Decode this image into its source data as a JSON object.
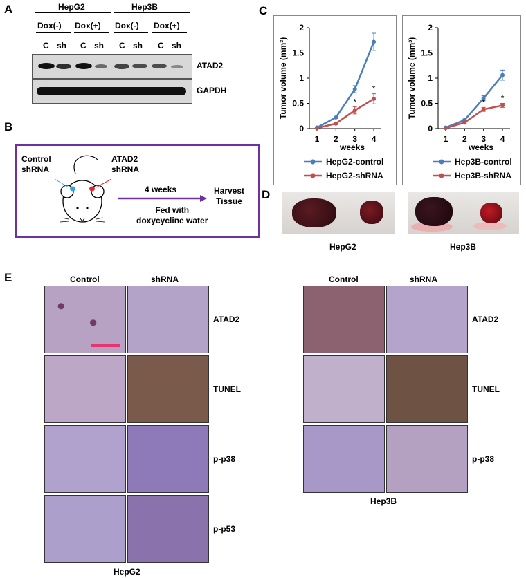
{
  "panel_A": {
    "letter": "A",
    "cell_lines": [
      "HepG2",
      "Hep3B"
    ],
    "dox_labels": [
      "Dox(-)",
      "Dox(+)",
      "Dox(-)",
      "Dox(+)"
    ],
    "lanes": [
      "C",
      "sh",
      "C",
      "sh",
      "C",
      "sh",
      "C",
      "sh"
    ],
    "proteins": [
      "ATAD2",
      "GAPDH"
    ]
  },
  "panel_B": {
    "letter": "B",
    "control_label": "Control\nshRNA",
    "atad2_label": "ATAD2\nshRNA",
    "duration": "4 weeks",
    "treatment": "Fed with\ndoxycycline water",
    "outcome": "Harvest\nTissue"
  },
  "panel_C": {
    "letter": "C"
  },
  "chart_data": [
    {
      "type": "line",
      "title": "",
      "xlabel": "weeks",
      "ylabel": "Tumor volume (mm³)",
      "x": [
        1,
        2,
        3,
        4
      ],
      "ylim": [
        0,
        2
      ],
      "yticks": [
        "0",
        "0.5",
        "1",
        "1.5",
        "2"
      ],
      "xticks": [
        "1",
        "2",
        "3",
        "4"
      ],
      "series": [
        {
          "name": "HepG2-control",
          "color": "#4a7ebb",
          "values": [
            0.02,
            0.22,
            0.78,
            1.72
          ],
          "errors": [
            0.01,
            0.02,
            0.07,
            0.17
          ]
        },
        {
          "name": "HepG2-shRNA",
          "color": "#c0504d",
          "values": [
            0.01,
            0.1,
            0.36,
            0.59
          ],
          "errors": [
            0.01,
            0.02,
            0.07,
            0.1
          ]
        }
      ],
      "significance": [
        "",
        "",
        "*",
        "*"
      ],
      "legend": "bottom"
    },
    {
      "type": "line",
      "title": "",
      "xlabel": "weeks",
      "ylabel": "Tumor volume (mm³)",
      "x": [
        1,
        2,
        3,
        4
      ],
      "ylim": [
        0,
        2
      ],
      "yticks": [
        "0",
        "0.5",
        "1",
        "1.5",
        "2"
      ],
      "xticks": [
        "1",
        "2",
        "3",
        "4"
      ],
      "series": [
        {
          "name": "Hep3B-control",
          "color": "#4a7ebb",
          "values": [
            0.02,
            0.17,
            0.6,
            1.06
          ],
          "errors": [
            0.01,
            0.02,
            0.05,
            0.1
          ]
        },
        {
          "name": "Hep3B-shRNA",
          "color": "#c0504d",
          "values": [
            0.01,
            0.12,
            0.38,
            0.46
          ],
          "errors": [
            0.01,
            0.02,
            0.04,
            0.04
          ]
        }
      ],
      "significance": [
        "",
        "",
        "*",
        "*"
      ],
      "legend": "bottom"
    }
  ],
  "panel_D": {
    "letter": "D",
    "captions": [
      "HepG2",
      "Hep3B"
    ]
  },
  "panel_E": {
    "letter": "E",
    "column_headers": [
      "Control",
      "shRNA"
    ],
    "hepg2_stains": [
      "ATAD2",
      "TUNEL",
      "p-p38",
      "p-p53"
    ],
    "hep3b_stains": [
      "ATAD2",
      "TUNEL",
      "p-p38"
    ],
    "captions": [
      "HepG2",
      "Hep3B"
    ]
  },
  "colors": {
    "control": "#4a7ebb",
    "shrna": "#c0504d",
    "frame_purple": "#7030a0",
    "arrow_purple": "#7030a0",
    "scale_bar": "#e8336e"
  }
}
